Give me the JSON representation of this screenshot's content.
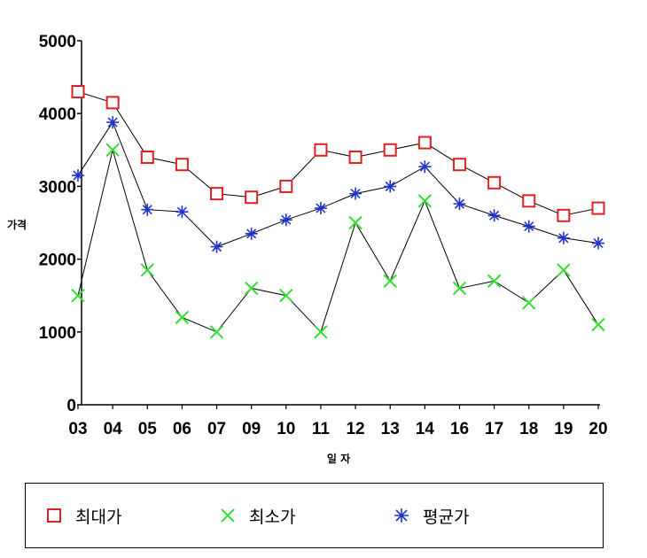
{
  "chart_data": {
    "type": "line",
    "ylabel": "가격",
    "xlabel": "일 자",
    "categories": [
      "03",
      "04",
      "05",
      "06",
      "07",
      "09",
      "10",
      "11",
      "12",
      "13",
      "14",
      "16",
      "17",
      "18",
      "19",
      "20"
    ],
    "ylim": [
      0,
      5000
    ],
    "yticks": [
      0,
      1000,
      2000,
      3000,
      4000,
      5000
    ],
    "legend_position": "bottom",
    "series": [
      {
        "name": "최대가",
        "marker": "square",
        "color": "#e02020",
        "values": [
          4300,
          4150,
          3400,
          3300,
          2900,
          2850,
          3000,
          3500,
          3400,
          3500,
          3600,
          3300,
          3050,
          2800,
          2600,
          2700
        ]
      },
      {
        "name": "최소가",
        "marker": "x",
        "color": "#33dd33",
        "values": [
          1500,
          3500,
          1850,
          1200,
          1000,
          1600,
          1500,
          1000,
          2500,
          1700,
          2800,
          1600,
          1700,
          1400,
          1850,
          1100
        ]
      },
      {
        "name": "평균가",
        "marker": "asterisk",
        "color": "#2233cc",
        "values": [
          3150,
          3880,
          2680,
          2650,
          2170,
          2350,
          2540,
          2700,
          2900,
          3000,
          3270,
          2760,
          2600,
          2450,
          2290,
          2220
        ]
      }
    ]
  }
}
